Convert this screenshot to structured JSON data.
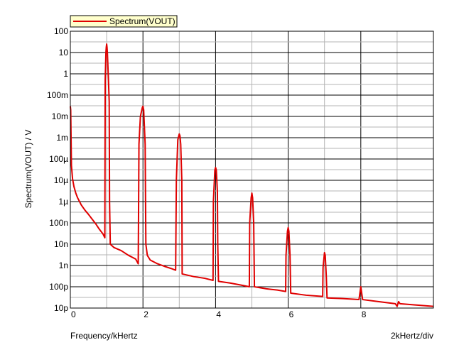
{
  "chart_data": {
    "type": "line",
    "title": "",
    "xlabel": "Frequency/kHertz",
    "x_division_label": "2kHertz/div",
    "ylabel": "Spectrum(VOUT) / V",
    "y_scale": "log",
    "xlim": [
      0,
      10
    ],
    "ylim": [
      1e-11,
      100
    ],
    "grid": true,
    "legend_position": "top-left",
    "x_ticks": [
      {
        "value": 0,
        "label": "0"
      },
      {
        "value": 2,
        "label": "2"
      },
      {
        "value": 4,
        "label": "4"
      },
      {
        "value": 6,
        "label": "6"
      },
      {
        "value": 8,
        "label": "8"
      }
    ],
    "y_ticks": [
      {
        "value": 100,
        "label": "100"
      },
      {
        "value": 10,
        "label": "10"
      },
      {
        "value": 1,
        "label": "1"
      },
      {
        "value": 0.1,
        "label": "100m"
      },
      {
        "value": 0.01,
        "label": "10m"
      },
      {
        "value": 0.001,
        "label": "1m"
      },
      {
        "value": 0.0001,
        "label": "100µ"
      },
      {
        "value": 1e-05,
        "label": "10µ"
      },
      {
        "value": 1e-06,
        "label": "1µ"
      },
      {
        "value": 1e-07,
        "label": "100n"
      },
      {
        "value": 1e-08,
        "label": "10n"
      },
      {
        "value": 1e-09,
        "label": "1n"
      },
      {
        "value": 1e-10,
        "label": "100p"
      },
      {
        "value": 1e-11,
        "label": "10p"
      }
    ],
    "series": [
      {
        "name": "Spectrum(VOUT)",
        "color": "#e00000",
        "points": [
          [
            0.0,
            0.03
          ],
          [
            0.01,
            0.02
          ],
          [
            0.03,
            5e-05
          ],
          [
            0.06,
            1.2e-05
          ],
          [
            0.1,
            5e-06
          ],
          [
            0.15,
            2.5e-06
          ],
          [
            0.2,
            1.5e-06
          ],
          [
            0.3,
            7e-07
          ],
          [
            0.4,
            4e-07
          ],
          [
            0.5,
            2.5e-07
          ],
          [
            0.6,
            1.5e-07
          ],
          [
            0.7,
            9e-08
          ],
          [
            0.8,
            5e-08
          ],
          [
            0.9,
            3e-08
          ],
          [
            0.95,
            2e-08
          ],
          [
            0.96,
            0.5
          ],
          [
            0.98,
            10
          ],
          [
            0.99,
            18
          ],
          [
            1.0,
            25
          ],
          [
            1.01,
            18
          ],
          [
            1.02,
            10
          ],
          [
            1.05,
            0.5
          ],
          [
            1.07,
            0.05
          ],
          [
            1.08,
            1e-06
          ],
          [
            1.1,
            1e-08
          ],
          [
            1.2,
            7e-09
          ],
          [
            1.4,
            5e-09
          ],
          [
            1.6,
            3e-09
          ],
          [
            1.8,
            2e-09
          ],
          [
            1.87,
            1.2e-09
          ],
          [
            1.89,
            0.0005
          ],
          [
            1.93,
            0.01
          ],
          [
            1.98,
            0.025
          ],
          [
            2.0,
            0.03
          ],
          [
            2.02,
            0.02
          ],
          [
            2.06,
            0.0005
          ],
          [
            2.08,
            1e-08
          ],
          [
            2.12,
            3e-09
          ],
          [
            2.2,
            1.8e-09
          ],
          [
            2.4,
            1.2e-09
          ],
          [
            2.6,
            9e-10
          ],
          [
            2.8,
            7e-10
          ],
          [
            2.9,
            6e-10
          ],
          [
            2.92,
            1e-05
          ],
          [
            2.96,
            0.0008
          ],
          [
            3.0,
            0.0015
          ],
          [
            3.02,
            0.0012
          ],
          [
            3.04,
            0.0005
          ],
          [
            3.07,
            1e-05
          ],
          [
            3.08,
            4e-10
          ],
          [
            3.4,
            3e-10
          ],
          [
            3.7,
            2.5e-10
          ],
          [
            3.93,
            2e-10
          ],
          [
            3.94,
            1e-06
          ],
          [
            3.98,
            3e-05
          ],
          [
            4.0,
            4e-05
          ],
          [
            4.02,
            3e-05
          ],
          [
            4.05,
            3e-06
          ],
          [
            4.06,
            1e-08
          ],
          [
            4.08,
            1.8e-10
          ],
          [
            4.4,
            1.5e-10
          ],
          [
            4.7,
            1.2e-10
          ],
          [
            4.93,
            1e-10
          ],
          [
            4.94,
            1e-07
          ],
          [
            4.98,
            1.5e-06
          ],
          [
            5.0,
            2.5e-06
          ],
          [
            5.02,
            1.5e-06
          ],
          [
            5.05,
            1e-07
          ],
          [
            5.07,
            1e-10
          ],
          [
            5.4,
            8e-11
          ],
          [
            5.7,
            7e-11
          ],
          [
            5.93,
            6e-11
          ],
          [
            5.94,
            3e-09
          ],
          [
            5.98,
            4e-08
          ],
          [
            6.0,
            6e-08
          ],
          [
            6.02,
            4e-08
          ],
          [
            6.05,
            3e-09
          ],
          [
            6.07,
            5e-11
          ],
          [
            6.5,
            4e-11
          ],
          [
            6.95,
            3.5e-11
          ],
          [
            6.96,
            8e-10
          ],
          [
            7.0,
            4e-09
          ],
          [
            7.02,
            3e-09
          ],
          [
            7.05,
            3e-10
          ],
          [
            7.07,
            3e-11
          ],
          [
            7.5,
            2.8e-11
          ],
          [
            7.95,
            2.5e-11
          ],
          [
            8.0,
            1e-10
          ],
          [
            8.05,
            2.5e-11
          ],
          [
            8.5,
            2e-11
          ],
          [
            8.95,
            1.6e-11
          ],
          [
            9.0,
            1.2e-11
          ],
          [
            9.04,
            2e-11
          ],
          [
            9.08,
            1.6e-11
          ],
          [
            9.5,
            1.4e-11
          ],
          [
            10.0,
            1.2e-11
          ]
        ]
      }
    ]
  }
}
